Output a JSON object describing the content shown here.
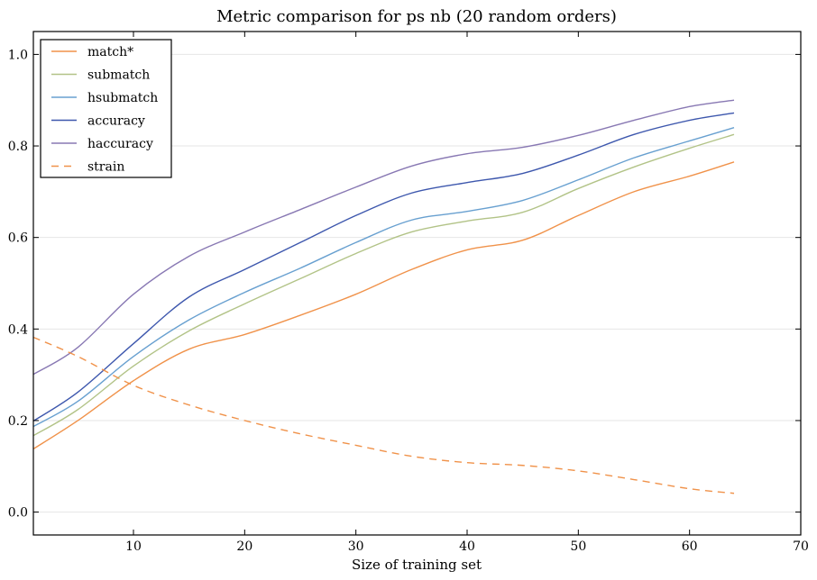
{
  "chart_data": {
    "type": "line",
    "title": "Metric comparison for ps nb (20 random orders)",
    "xlabel": "Size of training set",
    "ylabel": "",
    "xlim": [
      1,
      70
    ],
    "ylim": [
      -0.05,
      1.05
    ],
    "xticks": [
      10,
      20,
      30,
      40,
      50,
      60,
      70
    ],
    "yticks": [
      0.0,
      0.2,
      0.4,
      0.6,
      0.8,
      1.0
    ],
    "xtick_labels": [
      "10",
      "20",
      "30",
      "40",
      "50",
      "60",
      "70"
    ],
    "ytick_labels": [
      "0.0",
      "0.2",
      "0.4",
      "0.6",
      "0.8",
      "1.0"
    ],
    "grid": "horizontal",
    "legend_position": "top-left",
    "x": [
      1,
      5,
      10,
      15,
      20,
      25,
      30,
      35,
      40,
      45,
      50,
      55,
      60,
      64
    ],
    "series": [
      {
        "name": "match*",
        "color": "#f0924a",
        "dash": false,
        "values": [
          0.138,
          0.2,
          0.287,
          0.356,
          0.388,
          0.43,
          0.476,
          0.53,
          0.573,
          0.594,
          0.648,
          0.7,
          0.734,
          0.765
        ]
      },
      {
        "name": "submatch",
        "color": "#b2c387",
        "dash": false,
        "values": [
          0.167,
          0.224,
          0.319,
          0.396,
          0.455,
          0.51,
          0.565,
          0.612,
          0.636,
          0.655,
          0.707,
          0.754,
          0.795,
          0.825
        ]
      },
      {
        "name": "hsubmatch",
        "color": "#68a0d0",
        "dash": false,
        "values": [
          0.187,
          0.242,
          0.34,
          0.42,
          0.48,
          0.533,
          0.589,
          0.638,
          0.657,
          0.681,
          0.726,
          0.774,
          0.811,
          0.84
        ]
      },
      {
        "name": "accuracy",
        "color": "#3d57ad",
        "dash": false,
        "values": [
          0.199,
          0.262,
          0.368,
          0.47,
          0.53,
          0.589,
          0.648,
          0.697,
          0.72,
          0.74,
          0.78,
          0.825,
          0.856,
          0.872
        ]
      },
      {
        "name": "haccuracy",
        "color": "#8878b3",
        "dash": false,
        "values": [
          0.301,
          0.36,
          0.476,
          0.559,
          0.612,
          0.661,
          0.71,
          0.756,
          0.783,
          0.797,
          0.823,
          0.856,
          0.886,
          0.9
        ]
      },
      {
        "name": "strain",
        "color": "#f0924a",
        "dash": true,
        "values": [
          0.382,
          0.34,
          0.277,
          0.234,
          0.2,
          0.171,
          0.146,
          0.122,
          0.108,
          0.102,
          0.09,
          0.071,
          0.051,
          0.041
        ]
      }
    ]
  }
}
